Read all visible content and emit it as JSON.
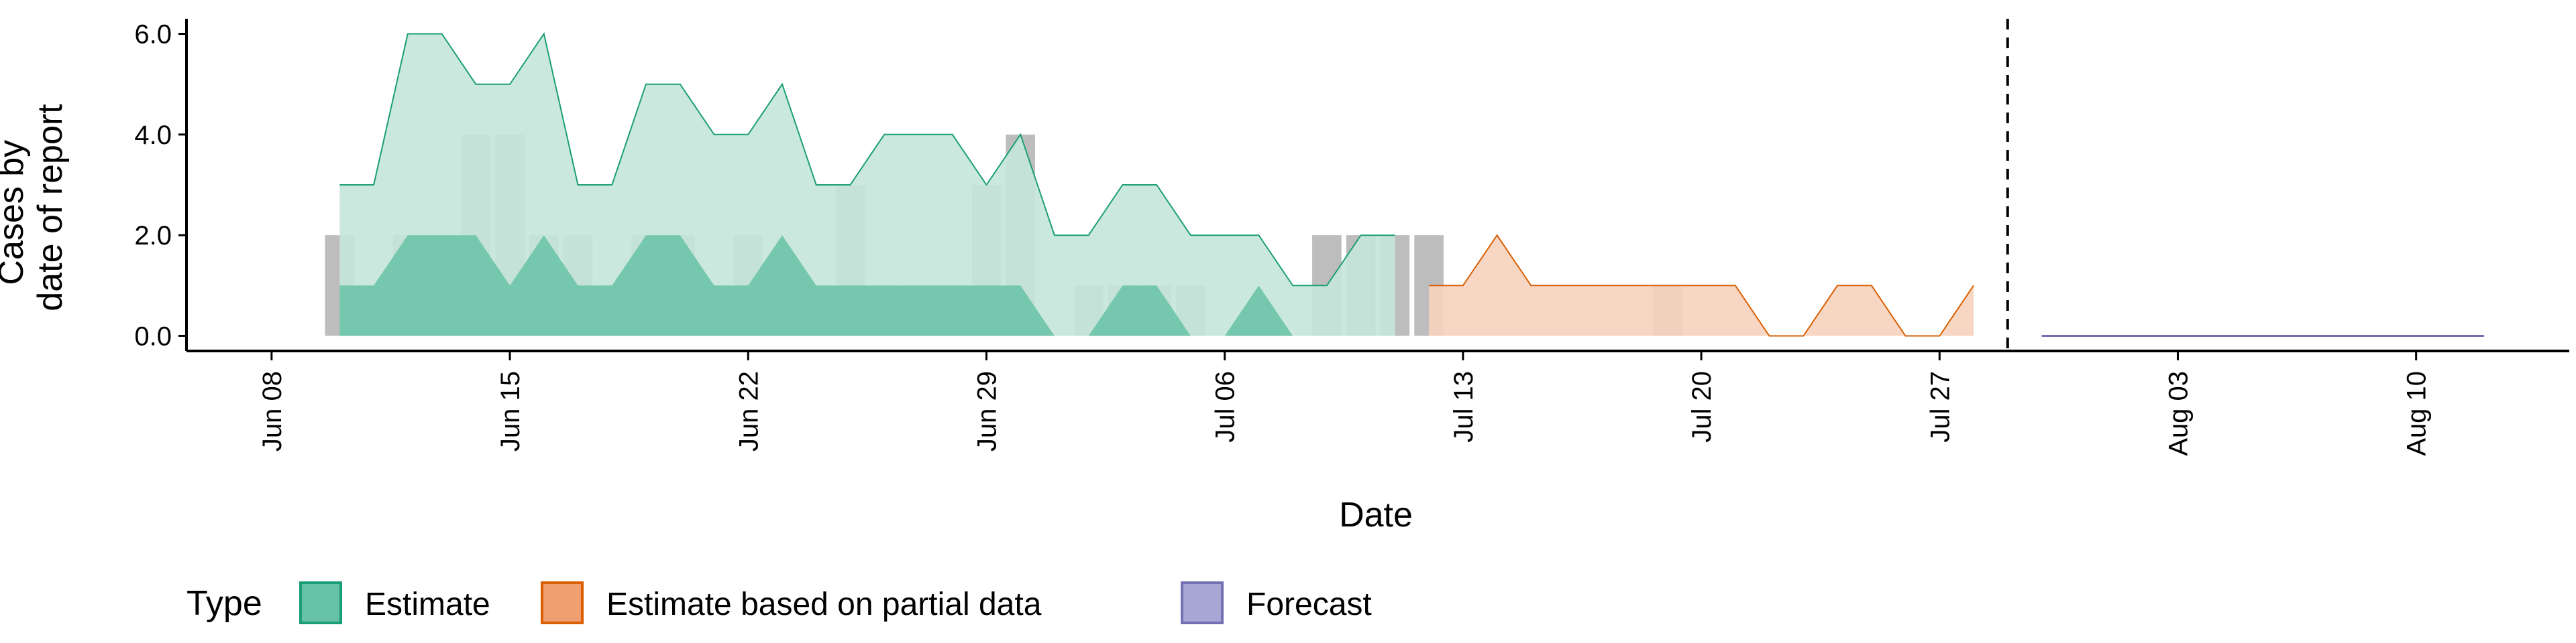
{
  "chart_data": {
    "type": "area",
    "xlabel": "Date",
    "ylabel_lines": [
      "Cases by",
      "date of report"
    ],
    "x_ticks": [
      "Jun 08",
      "Jun 15",
      "Jun 22",
      "Jun 29",
      "Jul 06",
      "Jul 13",
      "Jul 20",
      "Jul 27",
      "Aug 03",
      "Aug 10"
    ],
    "y_ticks": [
      "0.0",
      "2.0",
      "4.0",
      "6.0"
    ],
    "ylim": [
      -0.3,
      6.3
    ],
    "xlim_days": [
      -2.5,
      67.5
    ],
    "date_range": [
      "2020-06-08",
      "2020-08-15"
    ],
    "reference_line_date": "2020-07-29",
    "reference_line_style": "dashed",
    "grid": false,
    "legend": {
      "title": "Type",
      "position": "bottom-left",
      "entries": [
        {
          "label": "Estimate",
          "fill": "#66c2a5",
          "stroke": "#1b9e77"
        },
        {
          "label": "Estimate based on partial data",
          "fill": "#f0a070",
          "stroke": "#d95f02"
        },
        {
          "label": "Forecast",
          "fill": "#a8a6d4",
          "stroke": "#7570b3"
        }
      ]
    },
    "observed_bars": {
      "color": "#999999",
      "dates": [
        "Jun 10",
        "Jun 11",
        "Jun 12",
        "Jun 13",
        "Jun 14",
        "Jun 15",
        "Jun 16",
        "Jun 17",
        "Jun 18",
        "Jun 19",
        "Jun 20",
        "Jun 21",
        "Jun 22",
        "Jun 23",
        "Jun 24",
        "Jun 25",
        "Jun 26",
        "Jun 27",
        "Jun 28",
        "Jun 29",
        "Jun 30",
        "Jul 01",
        "Jul 02",
        "Jul 03",
        "Jul 04",
        "Jul 05",
        "Jul 06",
        "Jul 07",
        "Jul 08",
        "Jul 09",
        "Jul 10",
        "Jul 11",
        "Jul 12",
        "Jul 19"
      ],
      "days": [
        2,
        3,
        4,
        5,
        6,
        7,
        8,
        9,
        10,
        11,
        12,
        13,
        14,
        15,
        16,
        17,
        18,
        19,
        20,
        21,
        22,
        23,
        24,
        25,
        26,
        27,
        28,
        29,
        30,
        31,
        32,
        33,
        34,
        41
      ],
      "values": [
        2,
        1,
        2,
        2,
        4,
        4,
        2,
        2,
        1,
        2,
        2,
        1,
        2,
        1,
        1,
        3,
        1,
        1,
        1,
        3,
        4,
        0,
        1,
        1,
        1,
        1,
        0,
        0,
        0,
        2,
        2,
        2,
        2,
        1
      ]
    },
    "series": [
      {
        "name": "Estimate",
        "role": "outer",
        "fill": "#c5e6db",
        "stroke": "#1b9e77",
        "x_days": [
          2,
          3,
          4,
          5,
          6,
          7,
          8,
          9,
          10,
          11,
          12,
          13,
          14,
          15,
          16,
          17,
          18,
          19,
          20,
          21,
          22,
          23,
          24,
          25,
          26,
          27,
          28,
          29,
          30,
          31,
          32,
          33
        ],
        "lower": [
          0,
          0,
          0,
          0,
          0,
          0,
          0,
          0,
          0,
          0,
          0,
          0,
          0,
          0,
          0,
          0,
          0,
          0,
          0,
          0,
          0,
          0,
          0,
          0,
          0,
          0,
          0,
          0,
          0,
          0,
          0,
          0
        ],
        "upper": [
          3,
          3,
          6,
          6,
          5,
          5,
          6,
          3,
          3,
          5,
          5,
          4,
          4,
          5,
          3,
          3,
          4,
          4,
          4,
          3,
          4,
          2,
          2,
          3,
          3,
          2,
          2,
          2,
          1,
          1,
          2,
          2
        ]
      },
      {
        "name": "Estimate",
        "role": "inner",
        "fill": "#66c2a5",
        "stroke": "#66c2a5",
        "x_days": [
          2,
          3,
          4,
          5,
          6,
          7,
          8,
          9,
          10,
          11,
          12,
          13,
          14,
          15,
          16,
          17,
          18,
          19,
          20,
          21,
          22,
          23,
          24,
          25,
          26,
          27,
          28,
          29,
          30,
          31,
          32,
          33
        ],
        "lower": [
          0,
          0,
          0,
          0,
          0,
          0,
          0,
          0,
          0,
          0,
          0,
          0,
          0,
          0,
          0,
          0,
          0,
          0,
          0,
          0,
          0,
          0,
          0,
          0,
          0,
          0,
          0,
          0,
          0,
          0,
          0,
          0
        ],
        "upper": [
          1,
          1,
          2,
          2,
          2,
          1,
          2,
          1,
          1,
          2,
          2,
          1,
          1,
          2,
          1,
          1,
          1,
          1,
          1,
          1,
          1,
          0,
          0,
          1,
          1,
          0,
          0,
          1,
          0,
          0,
          0,
          0
        ]
      },
      {
        "name": "Estimate based on partial data",
        "role": "outer",
        "fill": "#f6d3bc",
        "stroke": "#d95f02",
        "x_days": [
          34,
          35,
          36,
          37,
          38,
          39,
          40,
          41,
          42,
          43,
          44,
          45,
          46,
          47,
          48,
          49,
          50
        ],
        "lower": [
          0,
          0,
          0,
          0,
          0,
          0,
          0,
          0,
          0,
          0,
          0,
          0,
          0,
          0,
          0,
          0,
          0
        ],
        "upper": [
          1,
          1,
          2,
          1,
          1,
          1,
          1,
          1,
          1,
          1,
          0,
          0,
          1,
          1,
          0,
          0,
          1
        ]
      },
      {
        "name": "Estimate based on partial data",
        "role": "inner",
        "fill": "#f0a070",
        "stroke": "#d95f02",
        "x_days": [
          34,
          35,
          36,
          37,
          38,
          39,
          40,
          41,
          42,
          43,
          44,
          45,
          46,
          47,
          48,
          49,
          50
        ],
        "lower": [
          0,
          0,
          0,
          0,
          0,
          0,
          0,
          0,
          0,
          0,
          0,
          0,
          0,
          0,
          0,
          0,
          0
        ],
        "upper": [
          0,
          0,
          0,
          0,
          0,
          0,
          0,
          0,
          0,
          0,
          0,
          0,
          0,
          0,
          0,
          0,
          0
        ]
      },
      {
        "name": "Forecast",
        "role": "outer",
        "fill": "#a8a6d4",
        "stroke": "#7570b3",
        "x_days": [
          52,
          53,
          54,
          55,
          56,
          57,
          58,
          59,
          60,
          61,
          62,
          63,
          64,
          65
        ],
        "lower": [
          0,
          0,
          0,
          0,
          0,
          0,
          0,
          0,
          0,
          0,
          0,
          0,
          0,
          0
        ],
        "upper": [
          0,
          0,
          0,
          0,
          0,
          0,
          0,
          0,
          0,
          0,
          0,
          0,
          0,
          0
        ]
      }
    ]
  }
}
